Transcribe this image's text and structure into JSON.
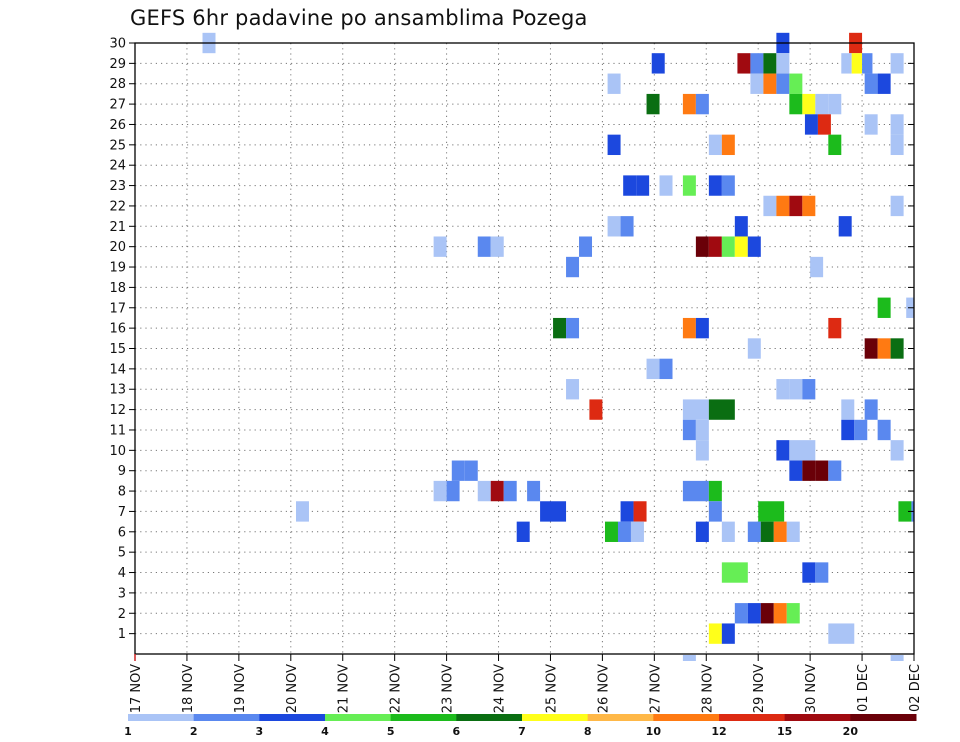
{
  "chart_data": {
    "type": "heatmap",
    "title": "GEFS 6hr padavine po ansamblima Pozega",
    "x_tick_labels": [
      "17 NOV",
      "18 NOV",
      "19 NOV",
      "20 NOV",
      "21 NOV",
      "22 NOV",
      "23 NOV",
      "24 NOV",
      "25 NOV",
      "26 NOV",
      "27 NOV",
      "28 NOV",
      "29 NOV",
      "30 NOV",
      "01 DEC",
      "02 DEC"
    ],
    "y_tick_labels": [
      "1",
      "2",
      "3",
      "4",
      "5",
      "6",
      "7",
      "8",
      "9",
      "10",
      "11",
      "12",
      "13",
      "14",
      "15",
      "16",
      "17",
      "18",
      "19",
      "20",
      "21",
      "22",
      "23",
      "24",
      "25",
      "26",
      "27",
      "28",
      "29",
      "30"
    ],
    "x_range_days": [
      0,
      15
    ],
    "y_range": [
      0,
      30
    ],
    "grid": true,
    "legend": {
      "placement": "bottom",
      "levels": [
        "1",
        "2",
        "3",
        "4",
        "5",
        "6",
        "7",
        "8",
        "10",
        "12",
        "15",
        "20"
      ],
      "colors": [
        "#aac4f6",
        "#5a88ef",
        "#1c48de",
        "#66ee55",
        "#1cbb1c",
        "#0a6e12",
        "#ffff1a",
        "#ffb847",
        "#ff7a12",
        "#dd2a12",
        "#a00a10",
        "#6a0008"
      ]
    },
    "cells_note": "each cell: [member, start_day_offset_from_17NOV, end_day_offset, legend_class_index]",
    "cells": [
      [
        30,
        1.3,
        1.55,
        0
      ],
      [
        30,
        12.35,
        12.6,
        2
      ],
      [
        30,
        13.75,
        14.0,
        9
      ],
      [
        29,
        9.95,
        10.2,
        2
      ],
      [
        29,
        11.6,
        11.85,
        10
      ],
      [
        29,
        11.85,
        12.1,
        1
      ],
      [
        29,
        12.1,
        12.35,
        5
      ],
      [
        29,
        12.35,
        12.6,
        0
      ],
      [
        29,
        13.6,
        13.8,
        0
      ],
      [
        29,
        13.8,
        14.0,
        6
      ],
      [
        29,
        14.0,
        14.2,
        1
      ],
      [
        29,
        14.55,
        14.8,
        0
      ],
      [
        28,
        9.1,
        9.35,
        0
      ],
      [
        28,
        11.85,
        12.1,
        0
      ],
      [
        28,
        12.1,
        12.35,
        8
      ],
      [
        28,
        12.35,
        12.6,
        1
      ],
      [
        28,
        12.6,
        12.85,
        3
      ],
      [
        28,
        14.05,
        14.3,
        1
      ],
      [
        28,
        14.3,
        14.55,
        2
      ],
      [
        27,
        9.85,
        10.1,
        5
      ],
      [
        27,
        10.55,
        10.8,
        8
      ],
      [
        27,
        10.8,
        11.05,
        1
      ],
      [
        27,
        12.6,
        12.85,
        4
      ],
      [
        27,
        12.85,
        13.1,
        6
      ],
      [
        27,
        13.1,
        13.35,
        0
      ],
      [
        27,
        13.35,
        13.6,
        0
      ],
      [
        26,
        12.9,
        13.15,
        2
      ],
      [
        26,
        13.15,
        13.4,
        9
      ],
      [
        26,
        14.05,
        14.3,
        0
      ],
      [
        26,
        14.55,
        14.8,
        0
      ],
      [
        25,
        9.1,
        9.35,
        2
      ],
      [
        25,
        11.05,
        11.3,
        0
      ],
      [
        25,
        11.3,
        11.55,
        8
      ],
      [
        25,
        13.35,
        13.6,
        4
      ],
      [
        25,
        14.55,
        14.8,
        0
      ],
      [
        23,
        9.4,
        9.65,
        2
      ],
      [
        23,
        9.65,
        9.9,
        2
      ],
      [
        23,
        10.1,
        10.35,
        0
      ],
      [
        23,
        10.55,
        10.8,
        3
      ],
      [
        23,
        11.05,
        11.3,
        2
      ],
      [
        23,
        11.3,
        11.55,
        1
      ],
      [
        22,
        12.1,
        12.35,
        0
      ],
      [
        22,
        12.35,
        12.6,
        8
      ],
      [
        22,
        12.6,
        12.85,
        10
      ],
      [
        22,
        12.85,
        13.1,
        8
      ],
      [
        22,
        14.55,
        14.8,
        0
      ],
      [
        21,
        9.1,
        9.35,
        0
      ],
      [
        21,
        9.35,
        9.6,
        1
      ],
      [
        21,
        11.55,
        11.8,
        2
      ],
      [
        21,
        13.55,
        13.8,
        2
      ],
      [
        20,
        5.75,
        6.0,
        0
      ],
      [
        20,
        6.6,
        6.85,
        1
      ],
      [
        20,
        6.85,
        7.1,
        0
      ],
      [
        20,
        8.55,
        8.8,
        1
      ],
      [
        20,
        10.8,
        11.05,
        11
      ],
      [
        20,
        11.05,
        11.3,
        10
      ],
      [
        20,
        11.3,
        11.55,
        3
      ],
      [
        20,
        11.55,
        11.8,
        6
      ],
      [
        20,
        11.8,
        12.05,
        2
      ],
      [
        19,
        8.3,
        8.55,
        1
      ],
      [
        19,
        13.0,
        13.25,
        0
      ],
      [
        17,
        14.3,
        14.55,
        4
      ],
      [
        17,
        14.85,
        15.0,
        0
      ],
      [
        16,
        8.05,
        8.3,
        5
      ],
      [
        16,
        8.3,
        8.55,
        1
      ],
      [
        16,
        10.55,
        10.8,
        8
      ],
      [
        16,
        10.8,
        11.05,
        2
      ],
      [
        16,
        13.35,
        13.6,
        9
      ],
      [
        15,
        11.8,
        12.05,
        0
      ],
      [
        15,
        14.05,
        14.3,
        11
      ],
      [
        15,
        14.3,
        14.55,
        8
      ],
      [
        15,
        14.55,
        14.8,
        5
      ],
      [
        14,
        9.85,
        10.1,
        0
      ],
      [
        14,
        10.1,
        10.35,
        1
      ],
      [
        13,
        8.3,
        8.55,
        0
      ],
      [
        13,
        12.35,
        12.6,
        0
      ],
      [
        13,
        12.6,
        12.85,
        0
      ],
      [
        13,
        12.85,
        13.1,
        1
      ],
      [
        12,
        8.75,
        9.0,
        9
      ],
      [
        12,
        10.55,
        11.05,
        0
      ],
      [
        12,
        11.05,
        11.55,
        5
      ],
      [
        12,
        13.6,
        13.85,
        0
      ],
      [
        12,
        14.05,
        14.3,
        1
      ],
      [
        11,
        10.55,
        10.8,
        1
      ],
      [
        11,
        10.8,
        11.05,
        0
      ],
      [
        11,
        13.6,
        13.85,
        2
      ],
      [
        11,
        13.85,
        14.1,
        1
      ],
      [
        11,
        14.3,
        14.55,
        1
      ],
      [
        10,
        10.8,
        11.05,
        0
      ],
      [
        10,
        12.35,
        12.6,
        2
      ],
      [
        10,
        12.6,
        13.1,
        0
      ],
      [
        10,
        14.55,
        14.8,
        0
      ],
      [
        9,
        6.1,
        6.35,
        1
      ],
      [
        9,
        6.35,
        6.6,
        1
      ],
      [
        9,
        12.6,
        12.85,
        2
      ],
      [
        9,
        12.85,
        13.1,
        11
      ],
      [
        9,
        13.1,
        13.35,
        11
      ],
      [
        9,
        13.35,
        13.6,
        1
      ],
      [
        8,
        5.75,
        6.0,
        0
      ],
      [
        8,
        6.0,
        6.25,
        1
      ],
      [
        8,
        6.6,
        6.85,
        0
      ],
      [
        8,
        6.85,
        7.1,
        10
      ],
      [
        8,
        7.1,
        7.35,
        1
      ],
      [
        8,
        7.55,
        7.8,
        1
      ],
      [
        8,
        10.55,
        11.05,
        1
      ],
      [
        8,
        11.05,
        11.3,
        4
      ],
      [
        7,
        3.1,
        3.35,
        0
      ],
      [
        7,
        9.35,
        9.6,
        2
      ],
      [
        7,
        9.6,
        9.85,
        9
      ],
      [
        7,
        11.05,
        11.3,
        1
      ],
      [
        7,
        12.0,
        12.5,
        4
      ],
      [
        7,
        14.7,
        14.95,
        4
      ],
      [
        7,
        14.95,
        15.0,
        1
      ],
      [
        6,
        7.35,
        7.6,
        2
      ],
      [
        7,
        7.8,
        8.3,
        2
      ],
      [
        6,
        9.05,
        9.3,
        4
      ],
      [
        6,
        9.3,
        9.55,
        1
      ],
      [
        6,
        9.55,
        9.8,
        0
      ],
      [
        6,
        10.8,
        11.05,
        2
      ],
      [
        6,
        11.3,
        11.55,
        0
      ],
      [
        6,
        11.8,
        12.05,
        1
      ],
      [
        6,
        12.05,
        12.3,
        5
      ],
      [
        6,
        12.3,
        12.55,
        8
      ],
      [
        6,
        12.55,
        12.8,
        0
      ],
      [
        4,
        11.3,
        11.8,
        3
      ],
      [
        4,
        12.85,
        13.1,
        2
      ],
      [
        4,
        13.1,
        13.35,
        1
      ],
      [
        2,
        11.55,
        11.8,
        1
      ],
      [
        2,
        11.8,
        12.05,
        2
      ],
      [
        2,
        12.05,
        12.3,
        11
      ],
      [
        2,
        12.3,
        12.55,
        8
      ],
      [
        2,
        12.55,
        12.8,
        3
      ],
      [
        1,
        11.05,
        11.3,
        6
      ],
      [
        1,
        11.3,
        11.55,
        2
      ],
      [
        1,
        13.35,
        13.85,
        0
      ]
    ],
    "edge_marks_note": "small colored ticks just below the x axis: [start_day_offset, end_day_offset, legend_class_index]",
    "edge_marks": [
      [
        10.55,
        10.8,
        0
      ],
      [
        14.55,
        14.8,
        0
      ]
    ]
  }
}
